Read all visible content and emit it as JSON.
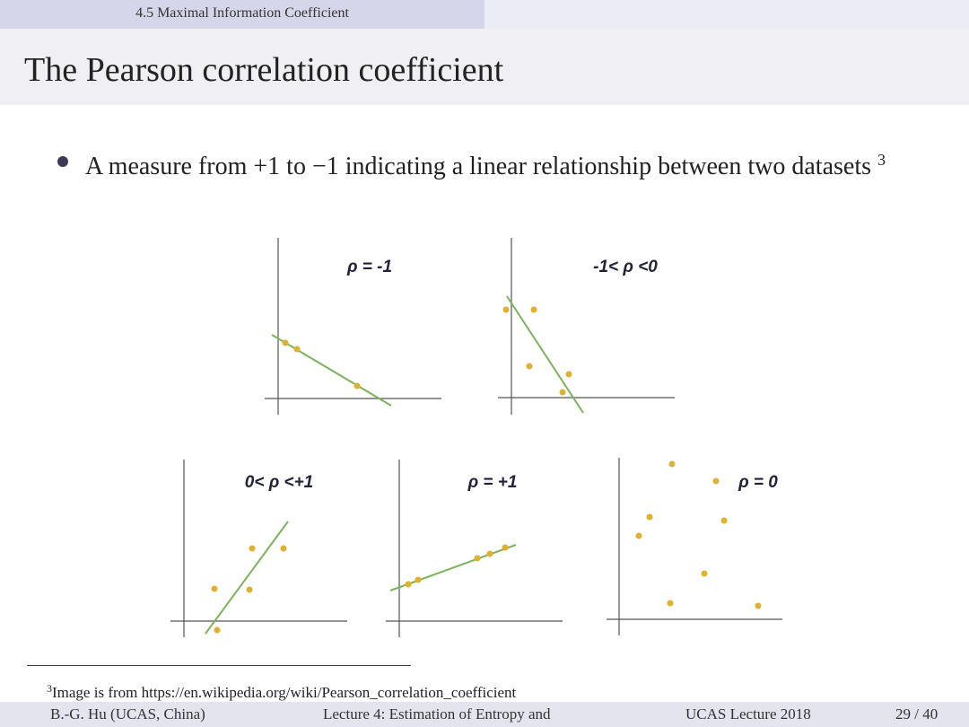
{
  "header": {
    "section": "4.5 Maximal Information Coefficient"
  },
  "title": "The Pearson correlation coefficient",
  "bullet": {
    "text": "A measure from +1 to −1 indicating a linear relationship between two datasets",
    "footnote_mark": "3"
  },
  "figure": {
    "panels": [
      "ρ = -1",
      "-1< ρ <0",
      "0< ρ <+1",
      "ρ = +1",
      "ρ = 0"
    ]
  },
  "footnote": {
    "mark": "3",
    "text": "Image is from https://en.wikipedia.org/wiki/Pearson_correlation_coefficient"
  },
  "footer": {
    "author": "B.-G. Hu (UCAS, China)",
    "lecture": "Lecture 4: Estimation of Entropy and",
    "venue": "UCAS Lecture 2018",
    "page": "29 / 40"
  }
}
